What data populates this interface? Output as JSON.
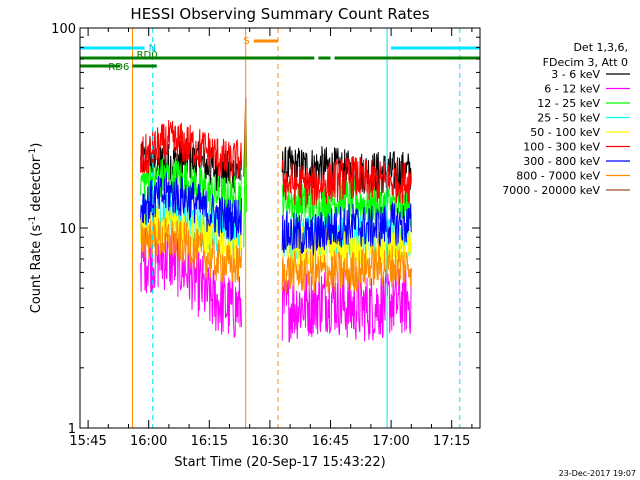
{
  "chart_data": {
    "type": "line",
    "title": "HESSI Observing Summary Count Rates",
    "xlabel": "Start Time (20-Sep-17 15:43:22)",
    "ylabel": "Count Rate (s⁻¹ detector⁻¹)",
    "yscale": "log",
    "ylim": [
      1,
      100
    ],
    "xlim": [
      "15:43",
      "17:22"
    ],
    "x_ticks": [
      "15:45",
      "16:00",
      "16:15",
      "16:30",
      "16:45",
      "17:00",
      "17:15"
    ],
    "y_ticks": [
      "1",
      "10",
      "100"
    ],
    "grid": false,
    "legend_position": "right",
    "legend_header": [
      "Det 1,3,6,",
      "FDecim 3, Att 0"
    ],
    "footer_date": "23-Dec-2017 19:07",
    "data_gaps": [
      [
        "16:23",
        "16:33"
      ],
      [
        "17:05",
        "17:22"
      ]
    ],
    "observing_start": "15:53",
    "series": [
      {
        "name": "3 - 6 keV",
        "color": "#000000",
        "points": [
          [
            "15:58",
            21
          ],
          [
            "16:05",
            21
          ],
          [
            "16:10",
            22
          ],
          [
            "16:15",
            20
          ],
          [
            "16:20",
            19
          ],
          [
            "16:23",
            19
          ],
          [
            "16:34",
            20
          ],
          [
            "16:40",
            20
          ],
          [
            "16:45",
            20
          ],
          [
            "16:50",
            19
          ],
          [
            "16:55",
            19
          ],
          [
            "17:00",
            19
          ],
          [
            "17:05",
            19
          ]
        ]
      },
      {
        "name": "6 - 12 keV",
        "color": "#ff00ff",
        "points": [
          [
            "15:58",
            7
          ],
          [
            "16:05",
            7.2
          ],
          [
            "16:10",
            6
          ],
          [
            "16:15",
            4.5
          ],
          [
            "16:20",
            4
          ],
          [
            "16:23",
            4
          ],
          [
            "16:34",
            4
          ],
          [
            "16:40",
            4.2
          ],
          [
            "16:45",
            4.5
          ],
          [
            "16:50",
            4
          ],
          [
            "16:55",
            4
          ],
          [
            "17:00",
            4.3
          ],
          [
            "17:05",
            4.3
          ]
        ]
      },
      {
        "name": "12 - 25 keV",
        "color": "#00ff00",
        "points": [
          [
            "15:58",
            17
          ],
          [
            "16:05",
            18
          ],
          [
            "16:10",
            17
          ],
          [
            "16:15",
            15
          ],
          [
            "16:20",
            14
          ],
          [
            "16:23",
            15
          ],
          [
            "16:34",
            14
          ],
          [
            "16:40",
            13
          ],
          [
            "16:45",
            13.5
          ],
          [
            "16:50",
            14
          ],
          [
            "16:55",
            13
          ],
          [
            "17:00",
            13
          ],
          [
            "17:05",
            13
          ]
        ]
      },
      {
        "name": "25 - 50 keV",
        "color": "#00ffff",
        "points": [
          [
            "15:58",
            12
          ],
          [
            "16:05",
            12
          ],
          [
            "16:10",
            11
          ],
          [
            "16:15",
            10
          ],
          [
            "16:20",
            9.5
          ],
          [
            "16:23",
            10
          ],
          [
            "16:34",
            9
          ],
          [
            "16:40",
            9
          ],
          [
            "16:45",
            9.5
          ],
          [
            "16:50",
            9
          ],
          [
            "16:55",
            9
          ],
          [
            "17:00",
            9
          ],
          [
            "17:05",
            9
          ]
        ]
      },
      {
        "name": "50 - 100 keV",
        "color": "#ffff00",
        "points": [
          [
            "15:58",
            10
          ],
          [
            "16:05",
            10.5
          ],
          [
            "16:10",
            10
          ],
          [
            "16:15",
            9
          ],
          [
            "16:20",
            8
          ],
          [
            "16:23",
            8.5
          ],
          [
            "16:34",
            8
          ],
          [
            "16:40",
            8
          ],
          [
            "16:45",
            8
          ],
          [
            "16:50",
            8
          ],
          [
            "16:55",
            8
          ],
          [
            "17:00",
            8
          ],
          [
            "17:05",
            8
          ]
        ]
      },
      {
        "name": "100 - 300 keV",
        "color": "#ff0000",
        "points": [
          [
            "15:58",
            22
          ],
          [
            "16:02",
            25
          ],
          [
            "16:05",
            27
          ],
          [
            "16:10",
            26
          ],
          [
            "16:15",
            24
          ],
          [
            "16:20",
            21
          ],
          [
            "16:23",
            22
          ],
          [
            "16:34",
            17
          ],
          [
            "16:40",
            16
          ],
          [
            "16:45",
            17
          ],
          [
            "16:50",
            18
          ],
          [
            "16:55",
            17
          ],
          [
            "17:00",
            17
          ],
          [
            "17:05",
            17
          ]
        ]
      },
      {
        "name": "300 - 800 keV",
        "color": "#0000ff",
        "points": [
          [
            "15:58",
            13
          ],
          [
            "16:02",
            14
          ],
          [
            "16:05",
            15
          ],
          [
            "16:10",
            14
          ],
          [
            "16:15",
            12
          ],
          [
            "16:20",
            11
          ],
          [
            "16:23",
            11.5
          ],
          [
            "16:34",
            9.5
          ],
          [
            "16:40",
            9
          ],
          [
            "16:45",
            10
          ],
          [
            "16:50",
            10.5
          ],
          [
            "16:55",
            10
          ],
          [
            "17:00",
            10.5
          ],
          [
            "17:05",
            10.5
          ]
        ]
      },
      {
        "name": "800 - 7000 keV",
        "color": "#ff8c00",
        "points": [
          [
            "15:58",
            9
          ],
          [
            "16:05",
            8.8
          ],
          [
            "16:10",
            8.2
          ],
          [
            "16:15",
            7
          ],
          [
            "16:20",
            6.5
          ],
          [
            "16:23",
            6.5
          ],
          [
            "16:34",
            6
          ],
          [
            "16:40",
            6
          ],
          [
            "16:45",
            6
          ],
          [
            "16:50",
            6
          ],
          [
            "16:55",
            6.5
          ],
          [
            "17:00",
            6.5
          ],
          [
            "17:05",
            6.5
          ]
        ]
      },
      {
        "name": "7000 - 20000 keV",
        "color": "#a0522d",
        "points": []
      }
    ],
    "flags": [
      {
        "label": "N",
        "color": "#00e5ff",
        "segments": [
          [
            "15:43",
            "15:59"
          ],
          [
            "17:00",
            "17:22"
          ]
        ]
      },
      {
        "label": "S",
        "color": "#ff8c00",
        "segments": [
          [
            "16:26",
            "16:32"
          ]
        ]
      },
      {
        "label": "RD0",
        "color": "#007f00",
        "segments": [
          [
            "15:43",
            "16:41"
          ],
          [
            "16:42",
            "16:45"
          ],
          [
            "16:46",
            "17:22"
          ]
        ]
      },
      {
        "label": "RD6",
        "color": "#007f00",
        "segments": [
          [
            "15:43",
            "15:53"
          ],
          [
            "15:56",
            "16:02"
          ]
        ]
      }
    ],
    "vertical_markers": [
      {
        "time": "15:43",
        "color": "#00e5ff",
        "style": "solid"
      },
      {
        "time": "16:01",
        "color": "#00e5ff",
        "style": "dashed"
      },
      {
        "time": "15:56",
        "color": "#ff8c00",
        "style": "solid"
      },
      {
        "time": "16:24",
        "color": "#ff8c00",
        "style": "solid"
      },
      {
        "time": "16:32",
        "color": "#ff8c00",
        "style": "dashed"
      },
      {
        "time": "16:59",
        "color": "#00e5ff",
        "style": "solid"
      },
      {
        "time": "17:17",
        "color": "#00e5ff",
        "style": "dashed"
      }
    ],
    "spike": {
      "time": "16:24",
      "peak": 45
    }
  }
}
